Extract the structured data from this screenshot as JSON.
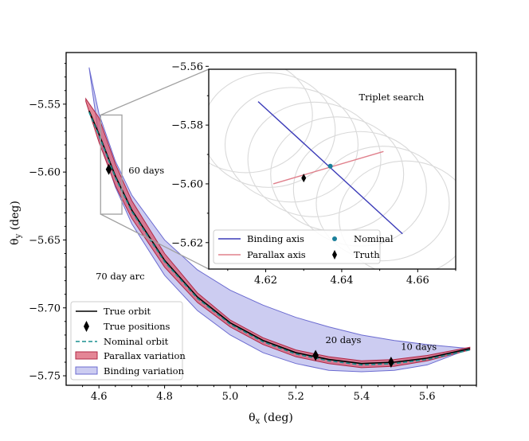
{
  "chart_data": [
    {
      "type": "line",
      "xlabel": "θx (deg)",
      "ylabel": "θy (deg)",
      "xlim": [
        4.5,
        5.75
      ],
      "ylim": [
        -5.757,
        -5.512
      ],
      "xticks": [
        4.6,
        4.8,
        5.0,
        5.2,
        5.4,
        5.6
      ],
      "xtick_labels": [
        "4.6",
        "4.8",
        "5.0",
        "5.2",
        "5.4",
        "5.6"
      ],
      "yticks": [
        -5.55,
        -5.6,
        -5.65,
        -5.7,
        -5.75
      ],
      "ytick_labels": [
        "−5.55",
        "−5.60",
        "−5.65",
        "−5.70",
        "−5.75"
      ],
      "series": [
        {
          "name": "True orbit",
          "style": "solid",
          "color": "#000000",
          "x": [
            4.57,
            4.6,
            4.65,
            4.7,
            4.8,
            4.9,
            5.0,
            5.1,
            5.2,
            5.3,
            5.4,
            5.5,
            5.6,
            5.73
          ],
          "y": [
            -5.555,
            -5.572,
            -5.603,
            -5.628,
            -5.665,
            -5.692,
            -5.711,
            -5.724,
            -5.733,
            -5.738,
            -5.741,
            -5.74,
            -5.737,
            -5.73
          ]
        },
        {
          "name": "Nominal orbit",
          "style": "dashed",
          "color": "#1a8f8f",
          "x": [
            4.57,
            4.6,
            4.65,
            4.7,
            4.8,
            4.9,
            5.0,
            5.1,
            5.2,
            5.3,
            5.4,
            5.5,
            5.6,
            5.73
          ],
          "y": [
            -5.556,
            -5.573,
            -5.604,
            -5.629,
            -5.666,
            -5.693,
            -5.712,
            -5.725,
            -5.734,
            -5.739,
            -5.742,
            -5.741,
            -5.738,
            -5.731
          ]
        }
      ],
      "bands": [
        {
          "name": "Binding variation",
          "color": "#8080dc",
          "opacity": 0.4,
          "x": [
            4.57,
            4.6,
            4.65,
            4.7,
            4.8,
            4.9,
            5.0,
            5.1,
            5.2,
            5.3,
            5.4,
            5.5,
            5.6,
            5.73
          ],
          "upper": [
            -5.523,
            -5.557,
            -5.592,
            -5.617,
            -5.65,
            -5.672,
            -5.687,
            -5.698,
            -5.707,
            -5.714,
            -5.72,
            -5.724,
            -5.727,
            -5.73
          ],
          "lower": [
            -5.523,
            -5.575,
            -5.611,
            -5.638,
            -5.676,
            -5.702,
            -5.72,
            -5.733,
            -5.741,
            -5.746,
            -5.747,
            -5.746,
            -5.742,
            -5.73
          ]
        },
        {
          "name": "Parallax variation",
          "color": "#d9536a",
          "opacity": 0.7,
          "x": [
            4.56,
            4.6,
            4.65,
            4.7,
            4.8,
            4.9,
            5.0,
            5.1,
            5.2,
            5.3,
            5.4,
            5.5,
            5.6,
            5.73
          ],
          "upper": [
            -5.546,
            -5.56,
            -5.594,
            -5.621,
            -5.66,
            -5.689,
            -5.709,
            -5.722,
            -5.731,
            -5.736,
            -5.739,
            -5.738,
            -5.735,
            -5.729
          ],
          "lower": [
            -5.548,
            -5.578,
            -5.61,
            -5.634,
            -5.67,
            -5.696,
            -5.714,
            -5.727,
            -5.736,
            -5.741,
            -5.744,
            -5.743,
            -5.739,
            -5.731
          ]
        }
      ],
      "true_positions": {
        "name": "True positions",
        "x": [
          4.63,
          5.26,
          5.49
        ],
        "y": [
          -5.598,
          -5.735,
          -5.74
        ]
      },
      "annotations": [
        {
          "text": "60 days",
          "x": 4.69,
          "y": -5.601
        },
        {
          "text": "70 day arc",
          "x": 4.59,
          "y": -5.679
        },
        {
          "text": "20 days",
          "x": 5.29,
          "y": -5.726
        },
        {
          "text": "10 days",
          "x": 5.52,
          "y": -5.731
        }
      ],
      "zoom_box": {
        "x": [
          4.605,
          4.67
        ],
        "y": [
          -5.631,
          -5.558
        ]
      },
      "legend": {
        "location": "lower-left",
        "entries": [
          "True orbit",
          "True positions",
          "Nominal orbit",
          "Parallax variation",
          "Binding variation"
        ]
      }
    },
    {
      "type": "scatter",
      "title": "Triplet search",
      "xlim": [
        4.605,
        4.67
      ],
      "ylim": [
        -5.629,
        -5.561
      ],
      "xticks": [
        4.62,
        4.64,
        4.66
      ],
      "xtick_labels": [
        "4.62",
        "4.64",
        "4.66"
      ],
      "yticks": [
        -5.56,
        -5.58,
        -5.6,
        -5.62
      ],
      "ytick_labels": [
        "−5.56",
        "−5.58",
        "−5.60",
        "−5.62"
      ],
      "ellipses": {
        "color": "#d9d9d9",
        "rx": 0.0175,
        "ry": 0.0195,
        "centers_x": [
          4.6148,
          4.6208,
          4.6268,
          4.6328,
          4.6388,
          4.6448,
          4.6508,
          4.6568
        ],
        "centers_y": [
          -5.5767,
          -5.5817,
          -5.5867,
          -5.5917,
          -5.5967,
          -5.6017,
          -5.6067,
          -5.6117
        ]
      },
      "binding_axis": {
        "name": "Binding axis",
        "color": "#3b3bb8",
        "x": [
          4.618,
          4.656
        ],
        "y": [
          -5.572,
          -5.617
        ]
      },
      "parallax_axis": {
        "name": "Parallax axis",
        "color": "#e0808c",
        "x": [
          4.622,
          4.651
        ],
        "y": [
          -5.6,
          -5.589
        ]
      },
      "nominal": {
        "name": "Nominal",
        "color": "#1a7f9a",
        "x": 4.637,
        "y": -5.594
      },
      "truth": {
        "name": "Truth",
        "x": 4.63,
        "y": -5.598
      },
      "legend": {
        "location": "lower-left",
        "entries": [
          "Binding axis",
          "Nominal",
          "Parallax axis",
          "Truth"
        ]
      }
    }
  ]
}
